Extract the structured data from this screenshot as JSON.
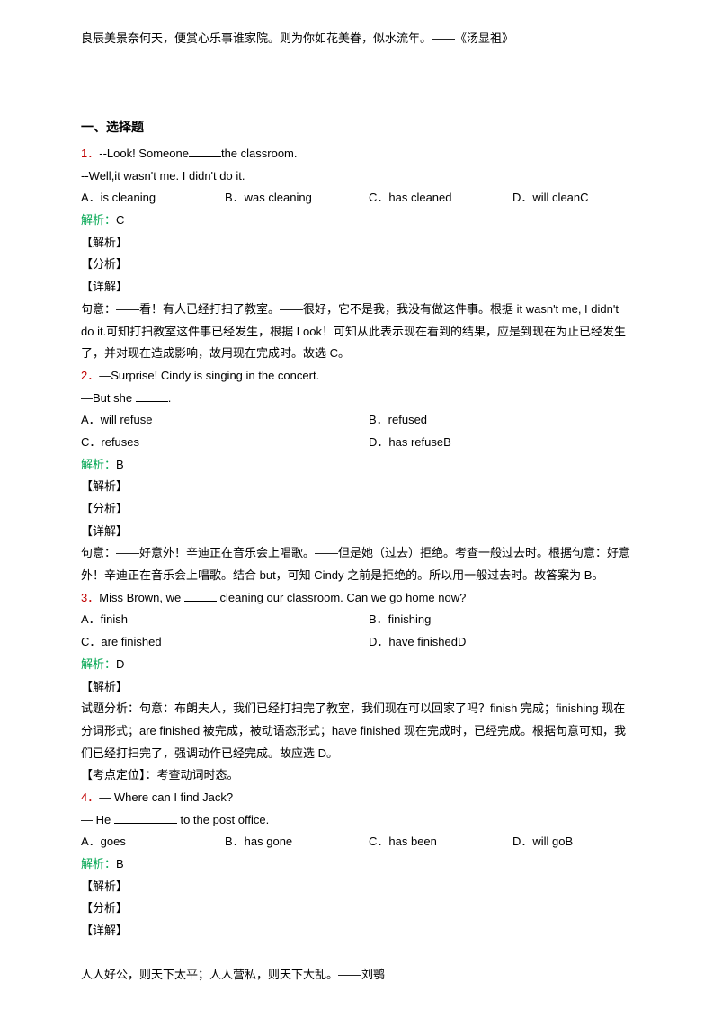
{
  "top_quote": "良辰美景奈何天，便赏心乐事谁家院。则为你如花美眷，似水流年。——《汤显祖》",
  "bottom_quote": "人人好公，则天下太平；人人营私，则天下大乱。——刘鹗",
  "section_title": "一、选择题",
  "q1": {
    "num": "1．",
    "stem1": "--Look! Someone",
    "stem1b": "the classroom.",
    "stem2": "--Well,it wasn't me. I didn't do it.",
    "optA": "A．is cleaning",
    "optB": "B．was cleaning",
    "optC": "C．has cleaned",
    "optD": "D．will clean",
    "optD_letter": "C",
    "ans_label": "解析：",
    "ans_letter": "C",
    "tag1": "【解析】",
    "tag2": "【分析】",
    "tag3": "【详解】",
    "explain": "句意：——看！有人已经打扫了教室。——很好，它不是我，我没有做这件事。根据 it wasn't me, I didn't do it.可知打扫教室这件事已经发生，根据 Look！可知从此表示现在看到的结果，应是到现在为止已经发生了，并对现在造成影响，故用现在完成时。故选 C。"
  },
  "q2": {
    "num": "2．",
    "stem1": "—Surprise! Cindy is singing in the concert.",
    "stem2a": "—But she ",
    "stem2b": ".",
    "optA": "A．will refuse",
    "optB": "B．refused",
    "optC": "C．refuses",
    "optD": "D．has refuse",
    "optD_letter": "B",
    "ans_label": "解析：",
    "ans_letter": "B",
    "tag1": "【解析】",
    "tag2": "【分析】",
    "tag3": "【详解】",
    "explain": "句意：——好意外！辛迪正在音乐会上唱歌。——但是她（过去）拒绝。考查一般过去时。根据句意：好意外！辛迪正在音乐会上唱歌。结合 but，可知 Cindy 之前是拒绝的。所以用一般过去时。故答案为 B。"
  },
  "q3": {
    "num": "3．",
    "stem1a": "Miss Brown, we ",
    "stem1b": " cleaning our classroom. Can we go home now?",
    "optA": "A．finish",
    "optB": "B．finishing",
    "optC": "C．are finished",
    "optD": "D．have finished",
    "optD_letter": "D",
    "ans_label": "解析：",
    "ans_letter": "D",
    "tag1": "【解析】",
    "explain1": "试题分析：句意：布朗夫人，我们已经打扫完了教室，我们现在可以回家了吗？finish 完成；finishing 现在分词形式；are finished 被完成，被动语态形式；have finished 现在完成时，已经完成。根据句意可知，我们已经打扫完了，强调动作已经完成。故应选 D。",
    "explain2": "【考点定位】：考查动词时态。"
  },
  "q4": {
    "num": "4．",
    "stem1": "— Where can I find Jack?",
    "stem2a": "— He ",
    "stem2b": " to the post office.",
    "optA": "A．goes",
    "optB": "B．has gone",
    "optC": "C．has been",
    "optD": "D．will go",
    "optD_letter": "B",
    "ans_label": "解析：",
    "ans_letter": "B",
    "tag1": "【解析】",
    "tag2": "【分析】",
    "tag3": "【详解】"
  },
  "colors": {
    "qnum": "#c00000",
    "answer": "#00a651",
    "text": "#000000",
    "bg": "#ffffff"
  },
  "fonts": {
    "body_pt": 13,
    "section_pt": 14
  }
}
